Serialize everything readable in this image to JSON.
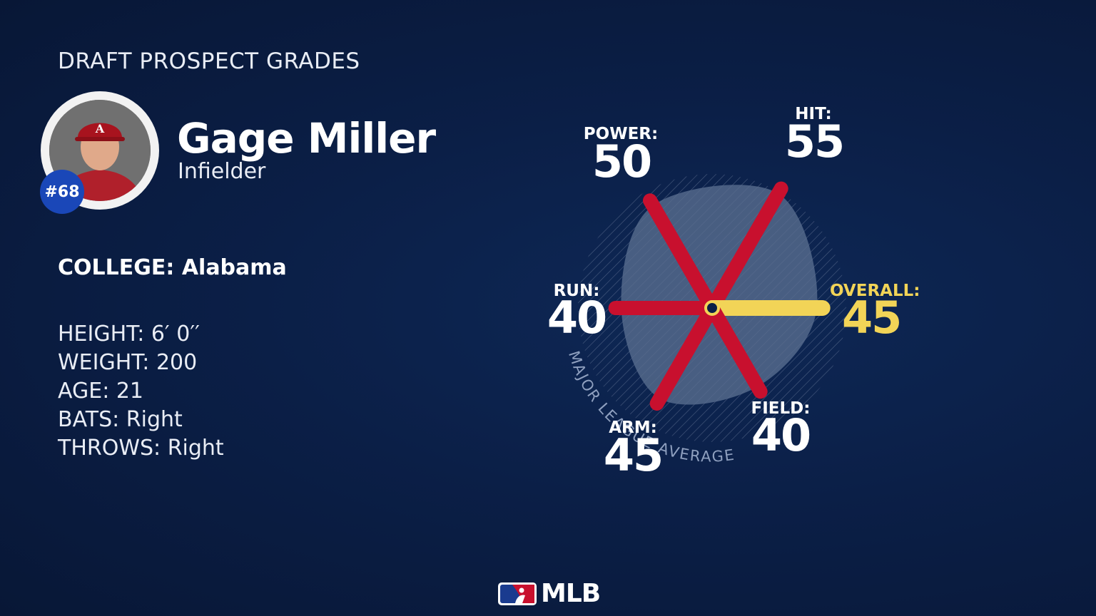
{
  "header": {
    "title": "DRAFT PROSPECT GRADES"
  },
  "player": {
    "name": "Gage Miller",
    "position": "Infielder",
    "number": "#68",
    "college_label": "COLLEGE:",
    "college": "Alabama",
    "stats": [
      {
        "label": "HEIGHT:",
        "value": "6′ 0′′"
      },
      {
        "label": "WEIGHT:",
        "value": "200"
      },
      {
        "label": "AGE:",
        "value": "21"
      },
      {
        "label": "BATS:",
        "value": "Right"
      },
      {
        "label": "THROWS:",
        "value": "Right"
      }
    ]
  },
  "chart_data": {
    "type": "radar",
    "scale": [
      20,
      80
    ],
    "average_label": "MAJOR LEAGUE AVERAGE",
    "average_value": 50,
    "categories": [
      {
        "key": "power",
        "label": "POWER:",
        "value": 50,
        "display": "50",
        "angle": 120
      },
      {
        "key": "hit",
        "label": "HIT:",
        "value": 55,
        "display": "55",
        "angle": 60
      },
      {
        "key": "overall",
        "label": "OVERALL:",
        "value": 45,
        "display": "45",
        "angle": 0
      },
      {
        "key": "field",
        "label": "FIELD:",
        "value": 40,
        "display": "40",
        "angle": -60
      },
      {
        "key": "arm",
        "label": "ARM:",
        "value": 45,
        "display": "45",
        "angle": -120
      },
      {
        "key": "run",
        "label": "RUN:",
        "value": 40,
        "display": "40",
        "angle": 180
      }
    ],
    "colors": {
      "spoke": "#c8102e",
      "overall": "#f2d457",
      "label_white": "#ffffff",
      "blob": "#5a6e90"
    }
  },
  "logo": {
    "text": "MLB"
  }
}
